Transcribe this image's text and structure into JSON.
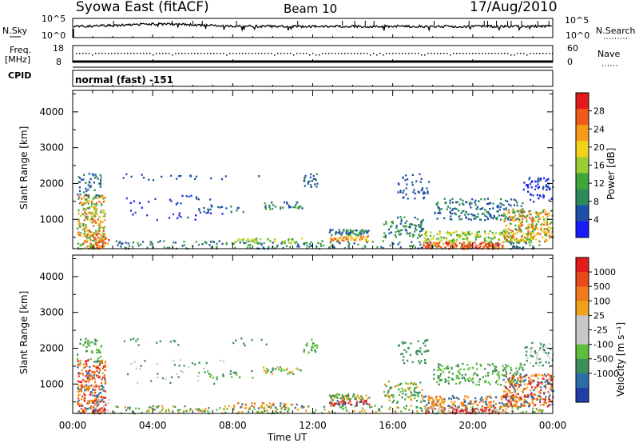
{
  "header": {
    "title": "Syowa East (fitACF)",
    "beam": "Beam 10",
    "date": "17/Aug/2010"
  },
  "top_panel": {
    "left_label": "N.Sky",
    "right_label": "N.Search",
    "left_ticks": [
      "10^5",
      "10^0"
    ],
    "right_ticks": [
      "10^5",
      "10^0"
    ],
    "right_style": "dotted"
  },
  "freq_panel": {
    "left_label_1": "Freq.",
    "left_label_2": "[MHz]",
    "left_ticks": [
      "18",
      "8"
    ],
    "right_label": "Nave",
    "right_ticks": [
      "60",
      "0"
    ],
    "right_style": "dotted"
  },
  "cpid": {
    "label": "CPID",
    "value": "normal (fast) -151"
  },
  "x_axis": {
    "label": "Time UT",
    "ticks": [
      "00:00",
      "04:00",
      "08:00",
      "12:00",
      "16:00",
      "20:00",
      "00:00"
    ]
  },
  "colors": {
    "power": [
      "#1a1aff",
      "#1e4fa6",
      "#2d8a5a",
      "#3fa63a",
      "#9ccc33",
      "#f2d21a",
      "#f59a1a",
      "#f25a1a",
      "#e31a1a"
    ],
    "velocity": [
      "#1f3ea8",
      "#2b6ea6",
      "#3c8f5a",
      "#5fbf3a",
      "#c8c8c8",
      "#c8c8c8",
      "#f2a11a",
      "#f07a1a",
      "#e84a1a",
      "#e21a1a"
    ]
  },
  "chart_data": [
    {
      "type": "heatmap",
      "name": "power",
      "ylabel": "Slant Range [km]",
      "xlabel": "Time UT",
      "ylim": [
        180,
        4600
      ],
      "xlim_hours": [
        0,
        24
      ],
      "yticks": [
        "1000",
        "2000",
        "3000",
        "4000"
      ],
      "colorbar": {
        "label": "Power [dB]",
        "ticks": [
          "4",
          "8",
          "12",
          "16",
          "20",
          "24",
          "28"
        ],
        "range": [
          0,
          32
        ]
      }
    },
    {
      "type": "heatmap",
      "name": "velocity",
      "ylabel": "Slant Range [km]",
      "xlabel": "Time UT",
      "ylim": [
        180,
        4600
      ],
      "xlim_hours": [
        0,
        24
      ],
      "yticks": [
        "1000",
        "2000",
        "3000",
        "4000"
      ],
      "colorbar": {
        "label": "Velocity [m s⁻¹]",
        "ticks": [
          "1000",
          "500",
          "100",
          "25",
          "-25",
          "-100",
          "-500",
          "-1000"
        ]
      }
    }
  ]
}
